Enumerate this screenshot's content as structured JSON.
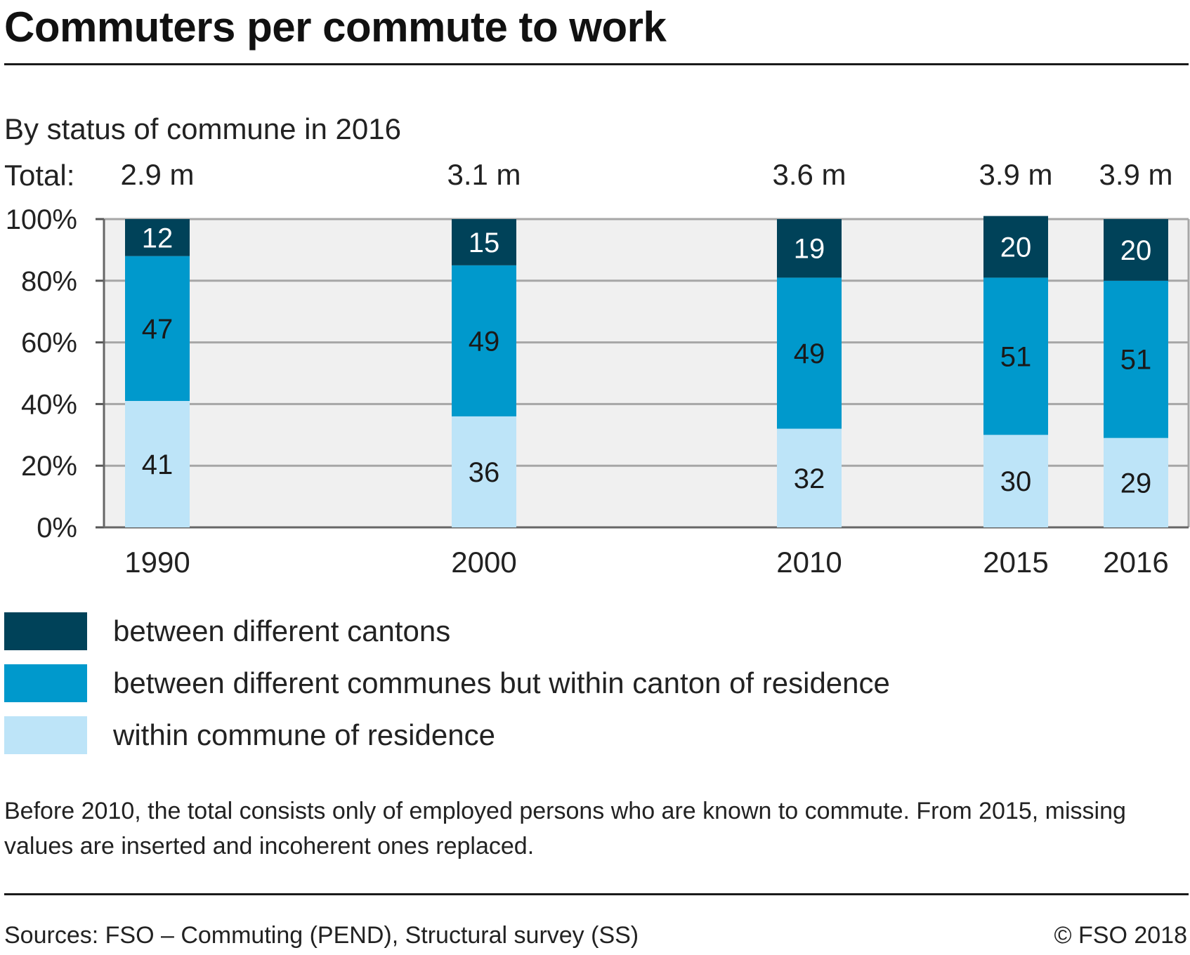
{
  "title": "Commuters per commute to work",
  "subtitle": "By status of commune in 2016",
  "totals_label": "Total:",
  "note": "Before 2010, the total consists only of employed persons who are known to commute. From 2015, missing values are inserted and incoherent ones replaced.",
  "source": "Sources: FSO – Commuting (PEND), Structural survey (SS)",
  "copyright": "© FSO 2018",
  "chart_data": {
    "type": "bar",
    "stacked": true,
    "categories": [
      "1990",
      "2000",
      "2010",
      "2015",
      "2016"
    ],
    "totals": [
      "2.9 m",
      "3.1 m",
      "3.6 m",
      "3.9 m",
      "3.9 m"
    ],
    "y_ticks": [
      "0%",
      "20%",
      "40%",
      "60%",
      "80%",
      "100%"
    ],
    "ylim": [
      0,
      100
    ],
    "grid": true,
    "legend_position": "bottom",
    "series": [
      {
        "name": "within commune of residence",
        "color": "#bde4f8",
        "label_color": "#1a1a1a",
        "values": [
          41,
          36,
          32,
          30,
          29
        ]
      },
      {
        "name": "between different communes but within canton of residence",
        "color": "#0099cc",
        "label_color": "#1a1a1a",
        "values": [
          47,
          49,
          49,
          51,
          51
        ]
      },
      {
        "name": "between different cantons",
        "color": "#004259",
        "label_color": "#ffffff",
        "values": [
          12,
          15,
          19,
          20,
          20
        ]
      }
    ]
  }
}
